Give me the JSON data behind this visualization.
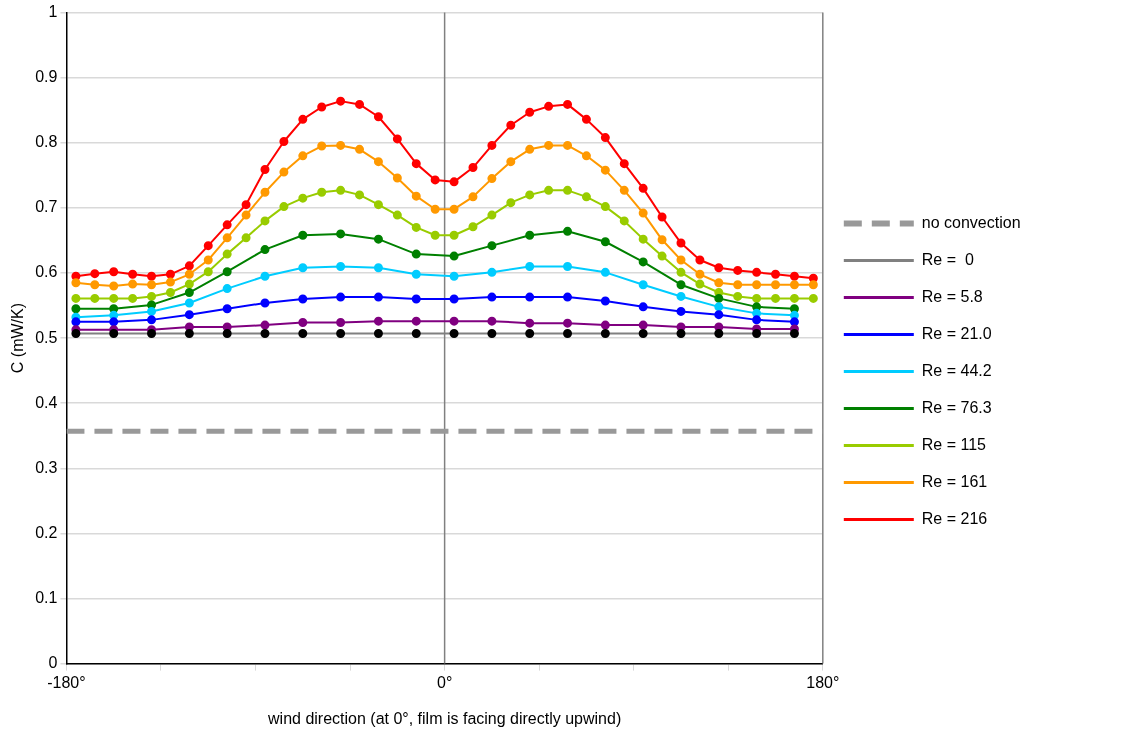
{
  "chart_data": {
    "type": "line",
    "xlabel": "wind direction (at 0°, film is facing directly upwind)",
    "ylabel": "C (mW/K)",
    "xlim": [
      -180,
      180
    ],
    "xticks": [
      {
        "value": -180,
        "label": "-180°"
      },
      {
        "value": -135,
        "label": null
      },
      {
        "value": -90,
        "label": null
      },
      {
        "value": -45,
        "label": null
      },
      {
        "value": 0,
        "label": "0°"
      },
      {
        "value": 45,
        "label": null
      },
      {
        "value": 90,
        "label": null
      },
      {
        "value": 135,
        "label": null
      },
      {
        "value": 180,
        "label": "180°"
      }
    ],
    "ylim": [
      0,
      1
    ],
    "yticks": [
      0,
      0.1,
      0.2,
      0.3,
      0.4,
      0.5,
      0.6,
      0.7,
      0.8,
      0.9,
      1
    ],
    "grid": "y",
    "legend": "right",
    "marker": "circle",
    "line_style": "solid",
    "ref_lines": [
      {
        "axis": "x",
        "value": 0,
        "label": null,
        "color": "#808080"
      }
    ],
    "series": [
      {
        "name": "no convection",
        "color": "#999999",
        "marker": "none",
        "line_style": "dashed",
        "x": [
          -180,
          180
        ],
        "values": [
          0.357,
          0.357
        ]
      },
      {
        "name": "Re =  0",
        "color": "#808080",
        "colors": [
          "#000000",
          "#000000",
          "#000000",
          "#000000",
          "#000000",
          "#000000",
          "#000000",
          "#000000",
          "#000000",
          "#000000",
          "#000000",
          "#000000",
          "#000000",
          "#000000",
          "#000000",
          "#000000",
          "#000000",
          "#000000",
          "#000000",
          "#000000"
        ],
        "x": [
          -175.5,
          -157.5,
          -139.5,
          -121.5,
          -103.5,
          -85.5,
          -67.5,
          -49.5,
          -31.5,
          -13.5,
          4.5,
          22.5,
          40.5,
          58.5,
          76.5,
          94.5,
          112.5,
          130.5,
          148.5,
          166.5
        ],
        "values": [
          0.507,
          0.507,
          0.507,
          0.507,
          0.507,
          0.507,
          0.507,
          0.507,
          0.507,
          0.507,
          0.507,
          0.507,
          0.507,
          0.507,
          0.507,
          0.507,
          0.507,
          0.507,
          0.507,
          0.507
        ]
      },
      {
        "name": "Re = 5.8",
        "color": "#800080",
        "x": [
          -175.5,
          -157.5,
          -139.5,
          -121.5,
          -103.5,
          -85.5,
          -67.5,
          -49.5,
          -31.5,
          -13.5,
          4.5,
          22.5,
          40.5,
          58.5,
          76.5,
          94.5,
          112.5,
          130.5,
          148.5,
          166.5
        ],
        "values": [
          0.513,
          0.513,
          0.513,
          0.517,
          0.517,
          0.52,
          0.524,
          0.524,
          0.526,
          0.526,
          0.526,
          0.526,
          0.523,
          0.523,
          0.52,
          0.52,
          0.517,
          0.517,
          0.514,
          0.514
        ]
      },
      {
        "name": "Re = 21.0",
        "color": "#0000ff",
        "x": [
          -175.5,
          -157.5,
          -139.5,
          -121.5,
          -103.5,
          -85.5,
          -67.5,
          -49.5,
          -31.5,
          -13.5,
          4.5,
          22.5,
          40.5,
          58.5,
          76.5,
          94.5,
          112.5,
          130.5,
          148.5,
          166.5
        ],
        "values": [
          0.525,
          0.525,
          0.528,
          0.536,
          0.545,
          0.554,
          0.56,
          0.563,
          0.563,
          0.56,
          0.56,
          0.563,
          0.563,
          0.563,
          0.557,
          0.548,
          0.541,
          0.536,
          0.528,
          0.525
        ]
      },
      {
        "name": "Re = 44.2",
        "color": "#00ccff",
        "x": [
          -175.5,
          -157.5,
          -139.5,
          -121.5,
          -103.5,
          -85.5,
          -67.5,
          -49.5,
          -31.5,
          -13.5,
          4.5,
          22.5,
          40.5,
          58.5,
          76.5,
          94.5,
          112.5,
          130.5,
          148.5,
          166.5
        ],
        "values": [
          0.532,
          0.535,
          0.541,
          0.554,
          0.576,
          0.595,
          0.608,
          0.61,
          0.608,
          0.598,
          0.595,
          0.601,
          0.61,
          0.61,
          0.601,
          0.582,
          0.564,
          0.548,
          0.538,
          0.535
        ]
      },
      {
        "name": "Re = 76.3",
        "color": "#008000",
        "x": [
          -175.5,
          -157.5,
          -139.5,
          -121.5,
          -103.5,
          -85.5,
          -67.5,
          -49.5,
          -31.5,
          -13.5,
          4.5,
          22.5,
          40.5,
          58.5,
          76.5,
          94.5,
          112.5,
          130.5,
          148.5,
          166.5
        ],
        "values": [
          0.545,
          0.545,
          0.551,
          0.57,
          0.602,
          0.636,
          0.658,
          0.66,
          0.652,
          0.629,
          0.626,
          0.642,
          0.658,
          0.664,
          0.648,
          0.617,
          0.582,
          0.561,
          0.548,
          0.545
        ]
      },
      {
        "name": "Re = 115",
        "color": "#99cc00",
        "x": [
          -175.5,
          -166.5,
          -157.5,
          -148.5,
          -139.5,
          -130.5,
          -121.5,
          -112.5,
          -103.5,
          -94.5,
          -85.5,
          -76.5,
          -67.5,
          -58.5,
          -49.5,
          -40.5,
          -31.5,
          -22.5,
          -13.5,
          -4.5,
          4.5,
          13.5,
          22.5,
          31.5,
          40.5,
          49.5,
          58.5,
          67.5,
          76.5,
          85.5,
          94.5,
          103.5,
          112.5,
          121.5,
          130.5,
          139.5,
          148.5,
          157.5,
          166.5,
          175.5
        ],
        "values": [
          0.561,
          0.561,
          0.561,
          0.561,
          0.564,
          0.57,
          0.583,
          0.602,
          0.629,
          0.654,
          0.68,
          0.702,
          0.715,
          0.724,
          0.727,
          0.72,
          0.705,
          0.689,
          0.67,
          0.658,
          0.658,
          0.671,
          0.689,
          0.708,
          0.72,
          0.727,
          0.727,
          0.717,
          0.702,
          0.68,
          0.652,
          0.626,
          0.601,
          0.583,
          0.57,
          0.564,
          0.561,
          0.561,
          0.561,
          0.561
        ]
      },
      {
        "name": "Re = 161",
        "color": "#ff9900",
        "x": [
          -175.5,
          -166.5,
          -157.5,
          -148.5,
          -139.5,
          -130.5,
          -121.5,
          -112.5,
          -103.5,
          -94.5,
          -85.5,
          -76.5,
          -67.5,
          -58.5,
          -49.5,
          -40.5,
          -31.5,
          -22.5,
          -13.5,
          -4.5,
          4.5,
          13.5,
          22.5,
          31.5,
          40.5,
          49.5,
          58.5,
          67.5,
          76.5,
          85.5,
          94.5,
          103.5,
          112.5,
          121.5,
          130.5,
          139.5,
          148.5,
          157.5,
          166.5,
          175.5
        ],
        "values": [
          0.585,
          0.582,
          0.58,
          0.583,
          0.582,
          0.586,
          0.598,
          0.62,
          0.654,
          0.689,
          0.724,
          0.755,
          0.78,
          0.795,
          0.796,
          0.79,
          0.771,
          0.746,
          0.718,
          0.698,
          0.698,
          0.717,
          0.745,
          0.771,
          0.79,
          0.796,
          0.796,
          0.78,
          0.758,
          0.727,
          0.692,
          0.651,
          0.62,
          0.598,
          0.585,
          0.582,
          0.582,
          0.582,
          0.582,
          0.582
        ]
      },
      {
        "name": "Re = 216",
        "color": "#ff0000",
        "x": [
          -175.5,
          -166.5,
          -157.5,
          -148.5,
          -139.5,
          -130.5,
          -121.5,
          -112.5,
          -103.5,
          -94.5,
          -85.5,
          -76.5,
          -67.5,
          -58.5,
          -49.5,
          -40.5,
          -31.5,
          -22.5,
          -13.5,
          -4.5,
          4.5,
          13.5,
          22.5,
          31.5,
          40.5,
          49.5,
          58.5,
          67.5,
          76.5,
          85.5,
          94.5,
          103.5,
          112.5,
          121.5,
          130.5,
          139.5,
          148.5,
          157.5,
          166.5,
          175.5
        ],
        "values": [
          0.595,
          0.599,
          0.602,
          0.598,
          0.595,
          0.598,
          0.611,
          0.642,
          0.674,
          0.705,
          0.759,
          0.802,
          0.836,
          0.855,
          0.864,
          0.859,
          0.84,
          0.806,
          0.768,
          0.743,
          0.74,
          0.762,
          0.796,
          0.827,
          0.847,
          0.856,
          0.859,
          0.836,
          0.808,
          0.768,
          0.73,
          0.686,
          0.646,
          0.62,
          0.608,
          0.604,
          0.601,
          0.598,
          0.595,
          0.592
        ]
      }
    ]
  }
}
